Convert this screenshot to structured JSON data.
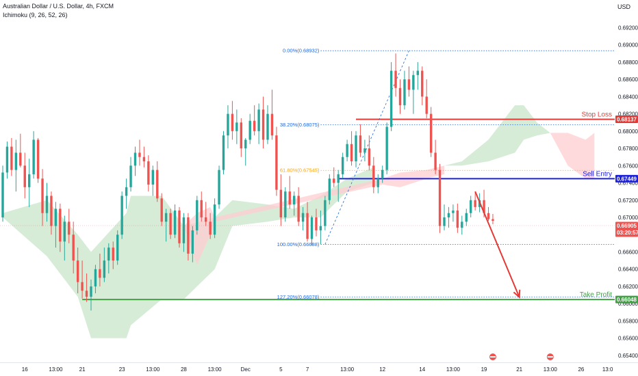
{
  "header": {
    "title": "Australian Dollar / U.S. Dollar, 4h, FXCM",
    "indicator": "Ichimoku (9, 26, 52, 26)",
    "currency": "USD"
  },
  "colors": {
    "up": "#26a69a",
    "down": "#ef5350",
    "stop": "#e53935",
    "entry": "#1e22d6",
    "profit": "#43a047",
    "fib_blue": "#1e65d6",
    "fib_orange": "#f5a623",
    "cloud_green": "#c8e6c9",
    "cloud_red": "#ffcdd2",
    "current": "#ef5350"
  },
  "chart_data": {
    "type": "candlestick",
    "symbol": "AUDUSD",
    "timeframe": "4h",
    "ylim": [
      0.6532,
      0.6952
    ],
    "y_ticks": [
      "0.65400",
      "0.65600",
      "0.65800",
      "0.66000",
      "0.66200",
      "0.66400",
      "0.66600",
      "0.66800",
      "0.67000",
      "0.67200",
      "0.67400",
      "0.67600",
      "0.67800",
      "0.68000",
      "0.68200",
      "0.68400",
      "0.68600",
      "0.68800",
      "0.69000",
      "0.69200"
    ],
    "x_ticks": [
      {
        "label": "16",
        "i": 5
      },
      {
        "label": "13:00",
        "i": 12
      },
      {
        "label": "21",
        "i": 18
      },
      {
        "label": "23",
        "i": 27
      },
      {
        "label": "13:00",
        "i": 34
      },
      {
        "label": "28",
        "i": 41
      },
      {
        "label": "13:00",
        "i": 48
      },
      {
        "label": "Dec",
        "i": 55
      },
      {
        "label": "5",
        "i": 63
      },
      {
        "label": "7",
        "i": 69
      },
      {
        "label": "13:00",
        "i": 78
      },
      {
        "label": "12",
        "i": 86
      },
      {
        "label": "14",
        "i": 95
      },
      {
        "label": "13:00",
        "i": 102
      },
      {
        "label": "19",
        "i": 109
      },
      {
        "label": "21",
        "i": 117
      },
      {
        "label": "13:00",
        "i": 124
      },
      {
        "label": "26",
        "i": 131
      },
      {
        "label": "13:0",
        "i": 137
      }
    ],
    "candles": [
      [
        0.67,
        0.676,
        0.6695,
        0.6752
      ],
      [
        0.6752,
        0.6788,
        0.6745,
        0.6782
      ],
      [
        0.6782,
        0.6792,
        0.6748,
        0.6755
      ],
      [
        0.6755,
        0.679,
        0.673,
        0.6775
      ],
      [
        0.6775,
        0.6797,
        0.6758,
        0.676
      ],
      [
        0.676,
        0.6775,
        0.6722,
        0.6735
      ],
      [
        0.6735,
        0.6768,
        0.6712,
        0.675
      ],
      [
        0.675,
        0.68,
        0.6745,
        0.679
      ],
      [
        0.679,
        0.6792,
        0.674,
        0.6745
      ],
      [
        0.6745,
        0.6756,
        0.669,
        0.6705
      ],
      [
        0.6705,
        0.674,
        0.6695,
        0.6725
      ],
      [
        0.6725,
        0.673,
        0.668,
        0.669
      ],
      [
        0.669,
        0.6718,
        0.6665,
        0.671
      ],
      [
        0.671,
        0.6716,
        0.666,
        0.6672
      ],
      [
        0.6672,
        0.6702,
        0.665,
        0.6695
      ],
      [
        0.6695,
        0.671,
        0.667,
        0.668
      ],
      [
        0.668,
        0.6695,
        0.6635,
        0.665
      ],
      [
        0.665,
        0.6665,
        0.6612,
        0.6625
      ],
      [
        0.6625,
        0.665,
        0.6606,
        0.6615
      ],
      [
        0.6615,
        0.6635,
        0.6602,
        0.6608
      ],
      [
        0.6608,
        0.6628,
        0.6592,
        0.662
      ],
      [
        0.662,
        0.6645,
        0.6612,
        0.664
      ],
      [
        0.664,
        0.6658,
        0.662,
        0.663
      ],
      [
        0.663,
        0.6665,
        0.6625,
        0.665
      ],
      [
        0.665,
        0.667,
        0.6635,
        0.6665
      ],
      [
        0.6665,
        0.6672,
        0.664,
        0.665
      ],
      [
        0.665,
        0.6685,
        0.6645,
        0.668
      ],
      [
        0.668,
        0.673,
        0.6675,
        0.6725
      ],
      [
        0.6725,
        0.6745,
        0.671,
        0.6735
      ],
      [
        0.6735,
        0.677,
        0.673,
        0.676
      ],
      [
        0.676,
        0.6782,
        0.6748,
        0.6775
      ],
      [
        0.6775,
        0.679,
        0.676,
        0.677
      ],
      [
        0.677,
        0.6782,
        0.6758,
        0.6765
      ],
      [
        0.6765,
        0.6772,
        0.673,
        0.6738
      ],
      [
        0.6738,
        0.676,
        0.6725,
        0.6755
      ],
      [
        0.6755,
        0.6765,
        0.6718,
        0.6722
      ],
      [
        0.6722,
        0.6728,
        0.669,
        0.6695
      ],
      [
        0.6695,
        0.671,
        0.6672,
        0.6705
      ],
      [
        0.6705,
        0.671,
        0.6675,
        0.668
      ],
      [
        0.668,
        0.6715,
        0.6676,
        0.6708
      ],
      [
        0.6708,
        0.6712,
        0.6665,
        0.667
      ],
      [
        0.667,
        0.6705,
        0.666,
        0.67
      ],
      [
        0.67,
        0.6705,
        0.665,
        0.6658
      ],
      [
        0.6658,
        0.669,
        0.6648,
        0.6685
      ],
      [
        0.6685,
        0.6725,
        0.668,
        0.672
      ],
      [
        0.672,
        0.673,
        0.6695,
        0.67
      ],
      [
        0.67,
        0.6718,
        0.669,
        0.6695
      ],
      [
        0.6695,
        0.6705,
        0.6675,
        0.668
      ],
      [
        0.668,
        0.6722,
        0.6676,
        0.6715
      ],
      [
        0.6715,
        0.676,
        0.671,
        0.6755
      ],
      [
        0.6755,
        0.68,
        0.675,
        0.6795
      ],
      [
        0.6795,
        0.683,
        0.678,
        0.682
      ],
      [
        0.682,
        0.6835,
        0.679,
        0.68
      ],
      [
        0.68,
        0.6825,
        0.6785,
        0.681
      ],
      [
        0.681,
        0.6815,
        0.677,
        0.678
      ],
      [
        0.678,
        0.6792,
        0.676,
        0.679
      ],
      [
        0.679,
        0.682,
        0.6785,
        0.6812
      ],
      [
        0.6812,
        0.683,
        0.6795,
        0.68
      ],
      [
        0.68,
        0.6832,
        0.6785,
        0.6825
      ],
      [
        0.6825,
        0.684,
        0.678,
        0.679
      ],
      [
        0.679,
        0.683,
        0.6785,
        0.682
      ],
      [
        0.682,
        0.6848,
        0.679,
        0.6795
      ],
      [
        0.6795,
        0.6805,
        0.6725,
        0.6732
      ],
      [
        0.6732,
        0.675,
        0.669,
        0.67
      ],
      [
        0.67,
        0.6735,
        0.6695,
        0.673
      ],
      [
        0.673,
        0.6748,
        0.671,
        0.6715
      ],
      [
        0.6715,
        0.673,
        0.6702,
        0.6725
      ],
      [
        0.6725,
        0.6735,
        0.669,
        0.6695
      ],
      [
        0.6695,
        0.6712,
        0.6685,
        0.6705
      ],
      [
        0.6705,
        0.6718,
        0.6672,
        0.6675
      ],
      [
        0.6675,
        0.6702,
        0.6668,
        0.67
      ],
      [
        0.67,
        0.671,
        0.6678,
        0.6685
      ],
      [
        0.6685,
        0.6708,
        0.6669,
        0.669
      ],
      [
        0.669,
        0.6725,
        0.6685,
        0.672
      ],
      [
        0.672,
        0.675,
        0.6715,
        0.6745
      ],
      [
        0.6745,
        0.6758,
        0.6735,
        0.674
      ],
      [
        0.674,
        0.6755,
        0.6718,
        0.675
      ],
      [
        0.675,
        0.6775,
        0.6745,
        0.677
      ],
      [
        0.677,
        0.679,
        0.6765,
        0.6785
      ],
      [
        0.6785,
        0.68,
        0.676,
        0.6765
      ],
      [
        0.6765,
        0.68,
        0.6758,
        0.6795
      ],
      [
        0.6795,
        0.6808,
        0.677,
        0.6775
      ],
      [
        0.6775,
        0.679,
        0.6765,
        0.678
      ],
      [
        0.678,
        0.6795,
        0.6755,
        0.676
      ],
      [
        0.676,
        0.677,
        0.6728,
        0.6735
      ],
      [
        0.6735,
        0.675,
        0.6728,
        0.6745
      ],
      [
        0.6745,
        0.676,
        0.674,
        0.6755
      ],
      [
        0.6755,
        0.681,
        0.675,
        0.6805
      ],
      [
        0.6805,
        0.688,
        0.68,
        0.687
      ],
      [
        0.687,
        0.689,
        0.684,
        0.685
      ],
      [
        0.685,
        0.686,
        0.682,
        0.683
      ],
      [
        0.683,
        0.687,
        0.6825,
        0.686
      ],
      [
        0.686,
        0.6875,
        0.684,
        0.6848
      ],
      [
        0.6848,
        0.687,
        0.682,
        0.6865
      ],
      [
        0.6865,
        0.688,
        0.6848,
        0.687
      ],
      [
        0.687,
        0.6875,
        0.683,
        0.684
      ],
      [
        0.684,
        0.686,
        0.6815,
        0.682
      ],
      [
        0.682,
        0.6828,
        0.677,
        0.6775
      ],
      [
        0.6775,
        0.679,
        0.675,
        0.6755
      ],
      [
        0.6755,
        0.6762,
        0.6682,
        0.669
      ],
      [
        0.669,
        0.6715,
        0.6685,
        0.67
      ],
      [
        0.67,
        0.6712,
        0.6688,
        0.6705
      ],
      [
        0.6705,
        0.6715,
        0.6695,
        0.6708
      ],
      [
        0.6708,
        0.6716,
        0.6682,
        0.6688
      ],
      [
        0.6688,
        0.6702,
        0.668,
        0.6695
      ],
      [
        0.6695,
        0.671,
        0.669,
        0.6705
      ],
      [
        0.6705,
        0.6725,
        0.67,
        0.672
      ],
      [
        0.672,
        0.673,
        0.6708,
        0.6712
      ],
      [
        0.6712,
        0.6728,
        0.6706,
        0.672
      ],
      [
        0.672,
        0.6732,
        0.67,
        0.6705
      ],
      [
        0.6705,
        0.6712,
        0.6696,
        0.6698
      ],
      [
        0.6698,
        0.6704,
        0.6692,
        0.6696
      ]
    ],
    "cloud_green": [
      [
        0,
        0.6705,
        0.67
      ],
      [
        10,
        0.672,
        0.6655
      ],
      [
        17,
        0.668,
        0.6608
      ],
      [
        20,
        0.666,
        0.656
      ],
      [
        28,
        0.6705,
        0.656
      ],
      [
        29,
        0.6725,
        0.6575
      ],
      [
        36,
        0.6725,
        0.6605
      ],
      [
        41,
        0.669,
        0.6605
      ],
      [
        48,
        0.67,
        0.664
      ],
      [
        52,
        0.672,
        0.669
      ],
      [
        60,
        0.6715,
        0.6695
      ],
      [
        66,
        0.671,
        0.67
      ],
      [
        72,
        0.6725,
        0.67
      ],
      [
        78,
        0.6745,
        0.673
      ],
      [
        84,
        0.6758,
        0.674
      ]
    ],
    "cloud_red": [
      [
        41,
        0.669,
        0.669
      ],
      [
        44,
        0.6705,
        0.6645
      ],
      [
        47,
        0.6712,
        0.668
      ],
      [
        48,
        0.67,
        0.6695
      ],
      [
        86,
        0.6745,
        0.6738
      ],
      [
        90,
        0.6752,
        0.6735
      ],
      [
        96,
        0.6755,
        0.6745
      ],
      [
        100,
        0.676,
        0.675
      ]
    ],
    "cloud_future_green": [
      [
        100,
        0.676,
        0.676
      ],
      [
        104,
        0.6765,
        0.676
      ],
      [
        110,
        0.679,
        0.6765
      ],
      [
        116,
        0.683,
        0.6775
      ],
      [
        118,
        0.683,
        0.679
      ],
      [
        121,
        0.681,
        0.6795
      ],
      [
        124,
        0.6798,
        0.6798
      ]
    ],
    "cloud_future_red": [
      [
        124,
        0.6798,
        0.6798
      ],
      [
        128,
        0.6798,
        0.676
      ],
      [
        132,
        0.679,
        0.6745
      ],
      [
        134,
        0.6798,
        0.6745
      ]
    ],
    "levels": {
      "stop_loss": {
        "label": "Stop Loss",
        "value": 0.68137,
        "tag": "0.68137",
        "from": 80
      },
      "sell_entry": {
        "label": "Sell Entry",
        "value": 0.67449,
        "tag": "0.67449",
        "from": 76
      },
      "take_profit": {
        "label": "Take Profit",
        "value": 0.66048,
        "tag": "0.66048",
        "from": 18
      },
      "current": {
        "value": 0.66905,
        "tag": "0.66905",
        "countdown": "03:20:57"
      }
    },
    "fib": [
      {
        "label": "0.00%(0.68932)",
        "value": 0.68932,
        "color": "blue"
      },
      {
        "label": "38.20%(0.68075)",
        "value": 0.68075,
        "color": "blue"
      },
      {
        "label": "61.80%(0.67545)",
        "value": 0.67545,
        "color": "orange"
      },
      {
        "label": "100.00%(0.66688)",
        "value": 0.66688,
        "color": "blue"
      },
      {
        "label": "127.20%(0.66078)",
        "value": 0.66078,
        "color": "blue"
      }
    ],
    "fib_from": 72,
    "fib_to": 137,
    "arrow": {
      "from": [
        107,
        0.673
      ],
      "to": [
        117,
        0.66075
      ]
    },
    "event_markers": [
      111,
      124
    ]
  }
}
